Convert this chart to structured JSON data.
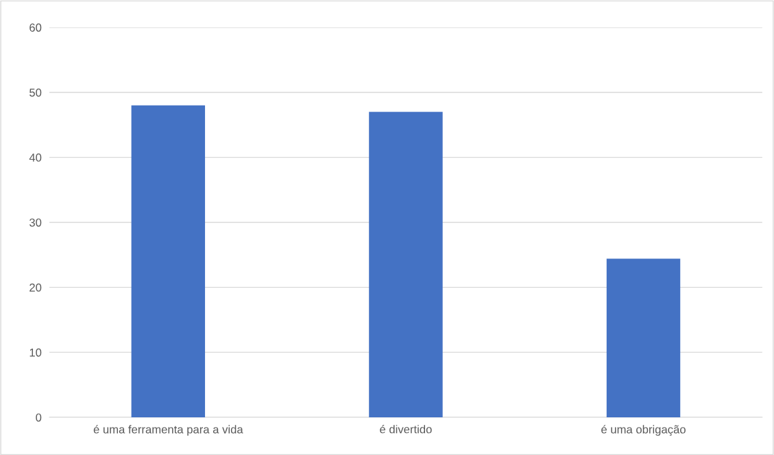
{
  "chart_data": {
    "type": "bar",
    "categories": [
      "é uma ferramenta para a vida",
      "é divertido",
      "é uma obrigação"
    ],
    "values": [
      48,
      47,
      24.4
    ],
    "color": "#4472c4",
    "ylim": [
      0,
      60
    ],
    "yticks": [
      0,
      10,
      20,
      30,
      40,
      50,
      60
    ],
    "grid": "y",
    "legend": false
  }
}
